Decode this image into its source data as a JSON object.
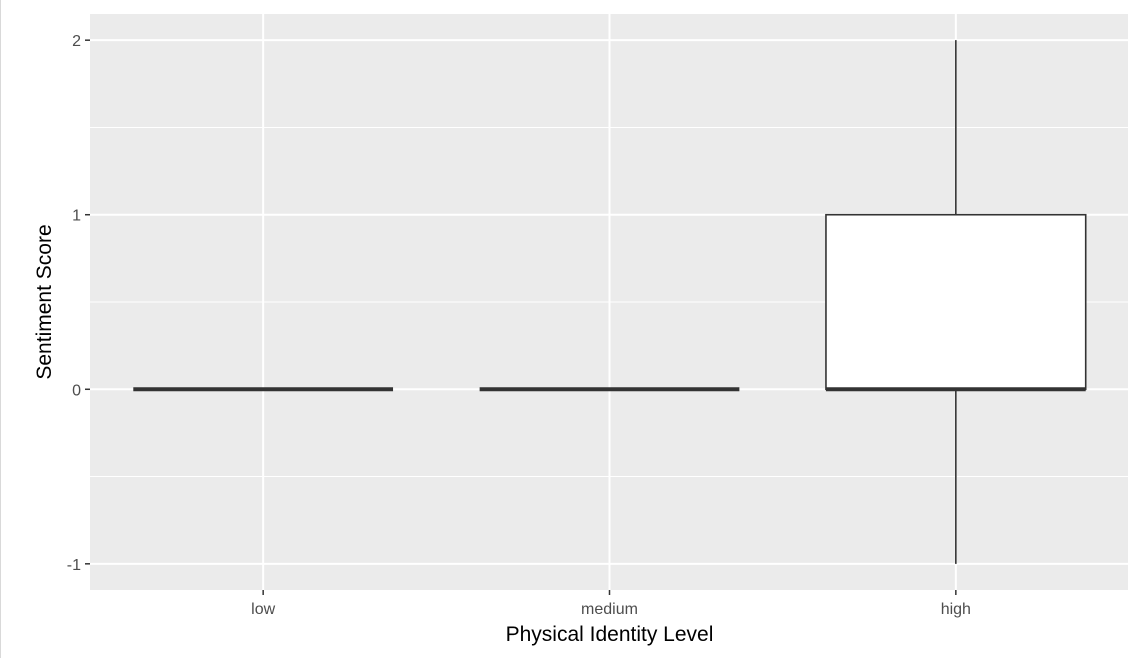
{
  "chart_data": {
    "type": "box",
    "title": "",
    "xlabel": "Physical Identity Level",
    "ylabel": "Sentiment Score",
    "categories": [
      "low",
      "medium",
      "high"
    ],
    "boxes": [
      {
        "category": "low",
        "min": 0,
        "q1": 0,
        "median": 0,
        "q3": 0,
        "max": 0
      },
      {
        "category": "medium",
        "min": 0,
        "q1": 0,
        "median": 0,
        "q3": 0,
        "max": 0
      },
      {
        "category": "high",
        "min": -1,
        "q1": 0,
        "median": 0,
        "q3": 1,
        "max": 2
      }
    ],
    "ylim": [
      -1.15,
      2.15
    ],
    "yticks": [
      -1,
      0,
      1,
      2
    ],
    "ytick_labels": [
      "-1",
      "0",
      "1",
      "2"
    ],
    "grid": true,
    "colors": {
      "panel": "#EBEBEB",
      "grid": "#FFFFFF",
      "box_fill": "#FFFFFF",
      "box_stroke": "#333333",
      "tick_text": "#4D4D4D"
    }
  }
}
